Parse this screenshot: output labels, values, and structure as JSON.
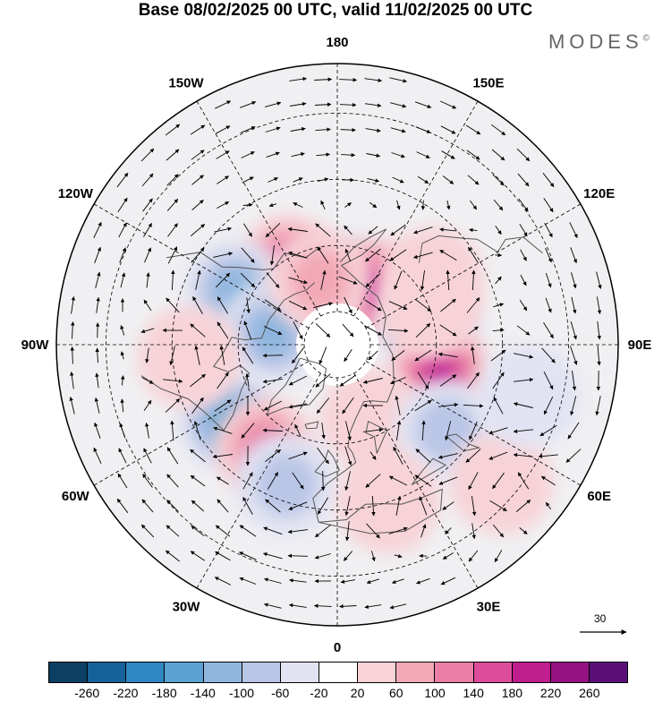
{
  "title": "Base 08/02/2025 00 UTC, valid 11/02/2025 00 UTC",
  "brand": "MODES",
  "brand_mark": "©",
  "longitude_labels": [
    {
      "text": "180",
      "lon": 180
    },
    {
      "text": "150E",
      "lon": 150
    },
    {
      "text": "120E",
      "lon": 120
    },
    {
      "text": "90E",
      "lon": 90
    },
    {
      "text": "60E",
      "lon": 60
    },
    {
      "text": "30E",
      "lon": 30
    },
    {
      "text": "0",
      "lon": 0
    },
    {
      "text": "30W",
      "lon": -30
    },
    {
      "text": "60W",
      "lon": -60
    },
    {
      "text": "90W",
      "lon": -90
    },
    {
      "text": "120W",
      "lon": -120
    },
    {
      "text": "150W",
      "lon": -150
    }
  ],
  "reference_vector": {
    "value": "30"
  },
  "colorbar": {
    "ticks": [
      "-260",
      "-220",
      "-180",
      "-140",
      "-100",
      "-60",
      "-20",
      "20",
      "60",
      "100",
      "140",
      "180",
      "220",
      "260"
    ],
    "colors": [
      "#0b3f63",
      "#15629a",
      "#2f86c2",
      "#5aa2d2",
      "#8fb6df",
      "#b9c6e6",
      "#e2e3f2",
      "#ffffff",
      "#f7d3d8",
      "#f2a9b7",
      "#ea7fa6",
      "#dd4c9a",
      "#c01d8e",
      "#961384",
      "#5c0f78"
    ]
  },
  "anomaly_centers": [
    {
      "lat": 72,
      "lon": 172,
      "value": -150
    },
    {
      "lat": 70,
      "lon": 148,
      "value": 200
    },
    {
      "lat": 62,
      "lon": -148,
      "value": 160
    },
    {
      "lat": 55,
      "lon": -118,
      "value": -130
    },
    {
      "lat": 70,
      "lon": -100,
      "value": -130
    },
    {
      "lat": 62,
      "lon": 100,
      "value": -150
    },
    {
      "lat": 58,
      "lon": 75,
      "value": 200
    },
    {
      "lat": 50,
      "lon": -55,
      "value": -170
    },
    {
      "lat": 52,
      "lon": -35,
      "value": 150
    },
    {
      "lat": 65,
      "lon": 25,
      "value": 60
    },
    {
      "lat": 48,
      "lon": 52,
      "value": -80
    },
    {
      "lat": 45,
      "lon": -20,
      "value": -80
    },
    {
      "lat": 40,
      "lon": 18,
      "value": 50
    },
    {
      "lat": 45,
      "lon": -85,
      "value": 50
    },
    {
      "lat": 70,
      "lon": -165,
      "value": 90
    },
    {
      "lat": 25,
      "lon": 50,
      "value": 60
    },
    {
      "lat": 55,
      "lon": 125,
      "value": 60
    },
    {
      "lat": 60,
      "lon": 112,
      "value": 50
    },
    {
      "lat": 30,
      "lon": 75,
      "value": -40
    }
  ]
}
